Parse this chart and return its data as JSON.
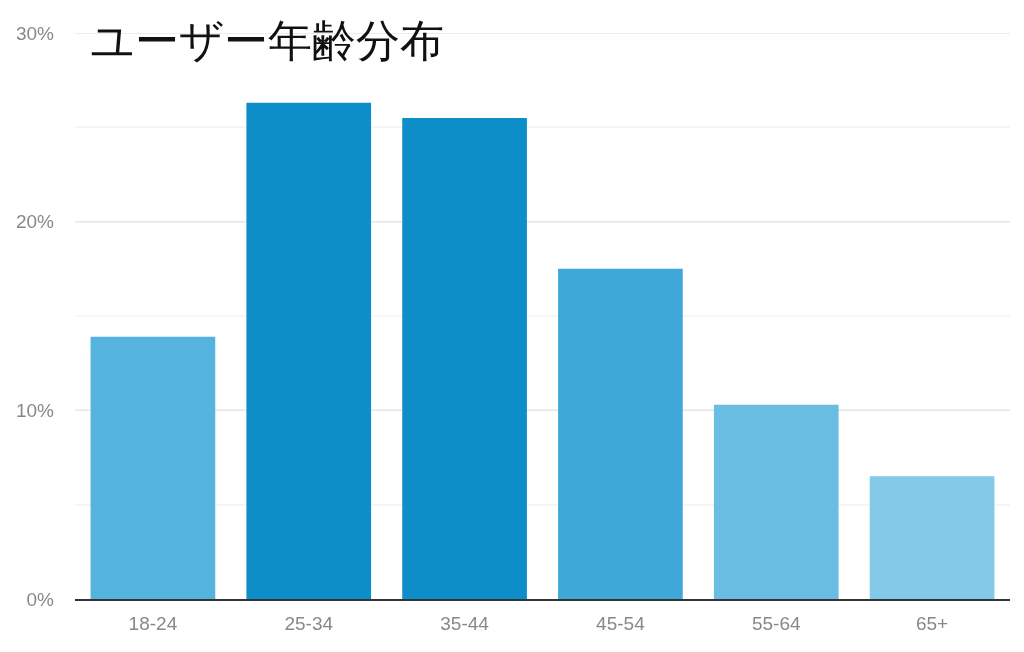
{
  "chart_data": {
    "type": "bar",
    "title": "ユーザー年齢分布",
    "categories": [
      "18-24",
      "25-34",
      "35-44",
      "45-54",
      "55-64",
      "65+"
    ],
    "values": [
      13.9,
      26.3,
      25.5,
      17.5,
      10.3,
      6.5
    ],
    "colors": [
      "#55b4dd",
      "#0d8ec9",
      "#0d8ec9",
      "#3ea9d8",
      "#6abde2",
      "#83cae8"
    ],
    "ylim": [
      0,
      30
    ],
    "yticks": [
      {
        "value": 0,
        "label": "0%"
      },
      {
        "value": 5,
        "label": null
      },
      {
        "value": 10,
        "label": "10%"
      },
      {
        "value": 15,
        "label": null
      },
      {
        "value": 20,
        "label": "20%"
      },
      {
        "value": 25,
        "label": null
      },
      {
        "value": 30,
        "label": "30%"
      }
    ],
    "grid": "y"
  }
}
